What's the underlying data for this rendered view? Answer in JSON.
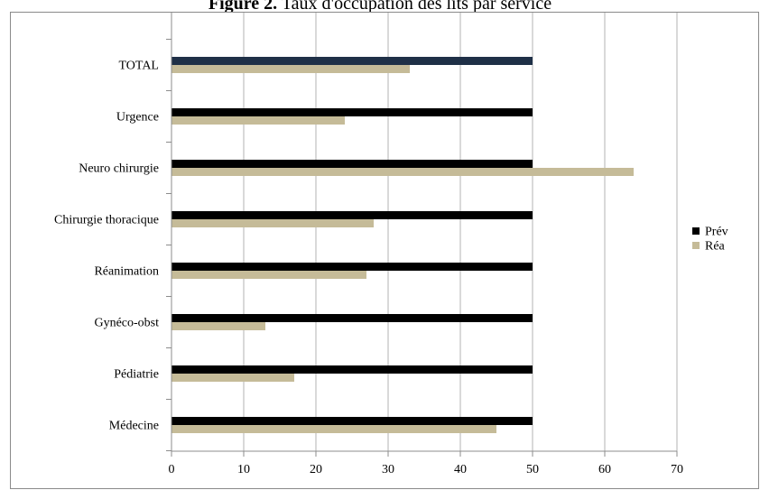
{
  "figure": {
    "title_prefix": "Figure 2.",
    "title_rest": " Taux d'occupation des lits par service"
  },
  "chart_data": {
    "type": "bar",
    "orientation": "horizontal",
    "categories": [
      "TOTAL",
      "Urgence",
      "Neuro chirurgie",
      "Chirurgie thoracique",
      "Réanimation",
      "Gynéco-obst",
      "Pédiatrie",
      "Médecine"
    ],
    "series": [
      {
        "name": "Prév",
        "color": "#000000",
        "values": [
          50,
          50,
          50,
          50,
          50,
          50,
          50,
          50
        ],
        "highlight": {
          "category": "TOTAL",
          "color": "#1f3047"
        }
      },
      {
        "name": "Réa",
        "color": "#c5bb98",
        "values": [
          33,
          24,
          64,
          28,
          27,
          13,
          17,
          45
        ]
      }
    ],
    "xlim": [
      0,
      70
    ],
    "xticks": [
      0,
      10,
      20,
      30,
      40,
      50,
      60,
      70
    ],
    "grid": true,
    "legend": "right"
  }
}
